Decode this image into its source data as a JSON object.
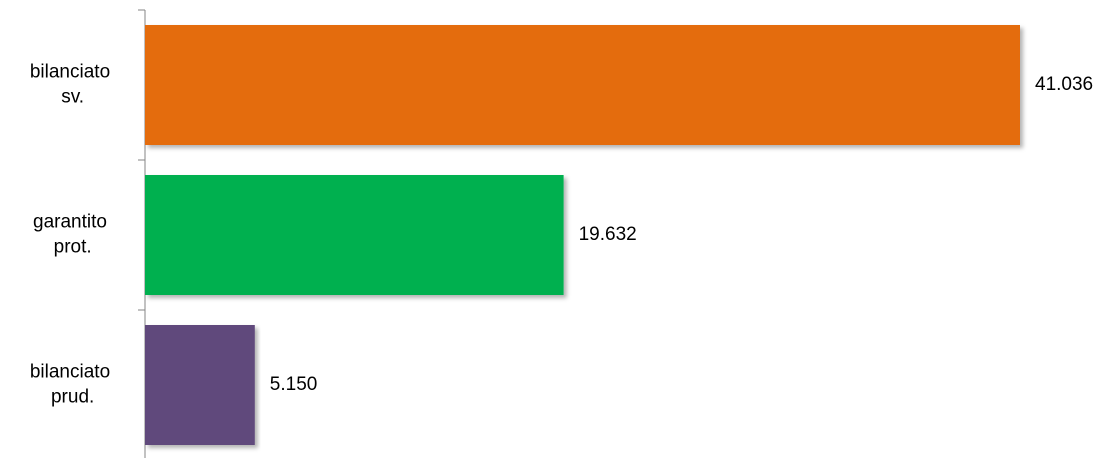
{
  "chart_data": {
    "type": "bar",
    "orientation": "horizontal",
    "categories": [
      "bilanciato sv.",
      "garantito prot.",
      "bilanciato prud."
    ],
    "values": [
      41036,
      19632,
      5150
    ],
    "value_labels": [
      "41.036",
      "19.632",
      "5.150"
    ],
    "colors": [
      "#e46c0a",
      "#00b050",
      "#604a7b"
    ]
  }
}
